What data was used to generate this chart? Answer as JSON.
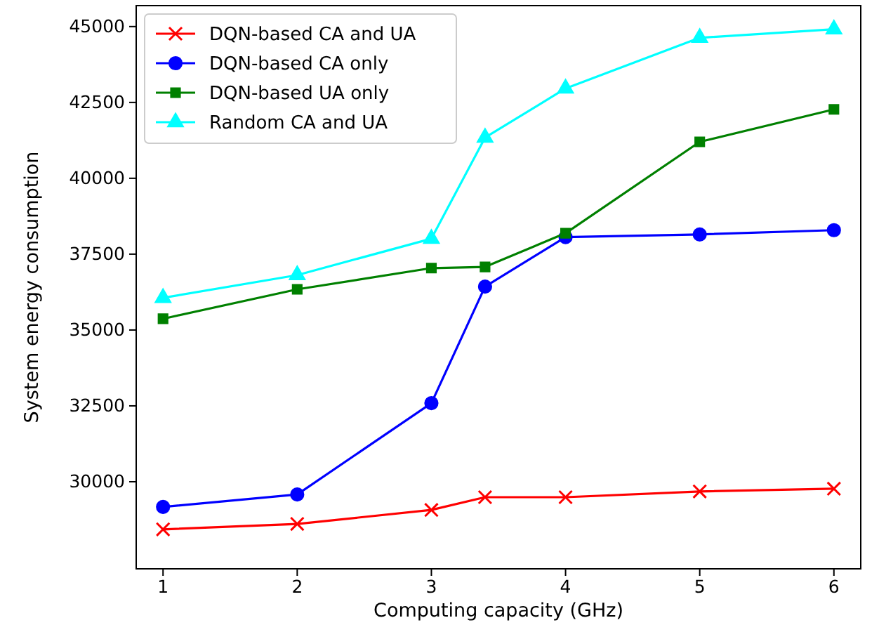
{
  "chart_data": {
    "type": "line",
    "xlabel": "Computing capacity (GHz)",
    "ylabel": "System energy consumption",
    "x": [
      1,
      2,
      3,
      3.4,
      4,
      5,
      6
    ],
    "xlim": [
      0.8,
      6.2
    ],
    "xticks": [
      1,
      2,
      3,
      4,
      5,
      6
    ],
    "ylim": [
      27130,
      45690
    ],
    "yticks": [
      30000,
      32500,
      35000,
      37500,
      40000,
      42500,
      45000
    ],
    "grid": false,
    "legend": "top left",
    "line_style": "solid",
    "series": [
      {
        "name": "DQN-based CA and UA",
        "color": "#ff0000",
        "marker": "cross",
        "values": [
          28430,
          28610,
          29070,
          29490,
          29490,
          29680,
          29770
        ]
      },
      {
        "name": "DQN-based CA only",
        "color": "#0000ff",
        "marker": "circle",
        "values": [
          29170,
          29580,
          32590,
          36430,
          38060,
          38150,
          38290
        ]
      },
      {
        "name": "DQN-based UA only",
        "color": "#008000",
        "marker": "square",
        "values": [
          35370,
          36340,
          37040,
          37080,
          38190,
          41200,
          42270
        ]
      },
      {
        "name": "Random CA and UA",
        "color": "#00ffff",
        "marker": "triangle",
        "values": [
          36060,
          36810,
          38010,
          41340,
          42960,
          44630,
          44910
        ]
      }
    ]
  }
}
